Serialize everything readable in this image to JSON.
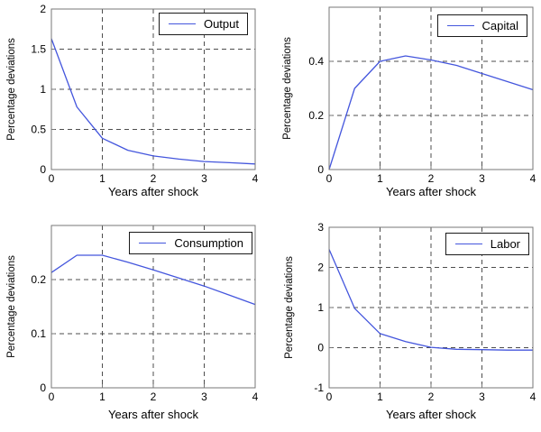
{
  "figure": {
    "background": "#ffffff",
    "line_color": "#4456dd",
    "grid_color": "#4d4d4d",
    "axis_color": "#777777",
    "tick_text_color": "#000000"
  },
  "chart_data": [
    {
      "type": "line",
      "series_label": "Output",
      "xlabel": "Years after shock",
      "ylabel": "Percentage deviations",
      "x": [
        0,
        0.5,
        1,
        1.5,
        2,
        2.5,
        3,
        3.5,
        4
      ],
      "y": [
        1.63,
        0.78,
        0.39,
        0.24,
        0.17,
        0.13,
        0.1,
        0.085,
        0.07
      ],
      "xlim": [
        0,
        4
      ],
      "ylim": [
        0,
        2
      ],
      "xticks": [
        0,
        1,
        2,
        3,
        4
      ],
      "xtick_labels": [
        "0",
        "1",
        "2",
        "3",
        "4"
      ],
      "yticks": [
        0,
        0.5,
        1,
        1.5,
        2
      ],
      "ytick_labels": [
        "0",
        "0.5",
        "1",
        "1.5",
        "2"
      ],
      "grid": true,
      "legend_position": "top-right"
    },
    {
      "type": "line",
      "series_label": "Capital",
      "xlabel": "Years after shock",
      "ylabel": "Percentage deviations",
      "x": [
        0,
        0.5,
        1,
        1.5,
        2,
        2.5,
        3,
        3.5,
        4
      ],
      "y": [
        0,
        0.3,
        0.4,
        0.42,
        0.405,
        0.385,
        0.355,
        0.325,
        0.295
      ],
      "xlim": [
        0,
        4
      ],
      "ylim": [
        0,
        0.6
      ],
      "xticks": [
        0,
        1,
        2,
        3,
        4
      ],
      "xtick_labels": [
        "0",
        "1",
        "2",
        "3",
        "4"
      ],
      "yticks": [
        0,
        0.2,
        0.4
      ],
      "ytick_labels": [
        "0",
        "0.2",
        "0.4"
      ],
      "grid": true,
      "legend_position": "top-right"
    },
    {
      "type": "line",
      "series_label": "Consumption",
      "xlabel": "Years after shock",
      "ylabel": "Percentage deviations",
      "x": [
        0,
        0.5,
        1,
        1.5,
        2,
        2.5,
        3,
        3.5,
        4
      ],
      "y": [
        0.213,
        0.245,
        0.245,
        0.232,
        0.218,
        0.203,
        0.188,
        0.171,
        0.154
      ],
      "xlim": [
        0,
        4
      ],
      "ylim": [
        0,
        0.3
      ],
      "xticks": [
        0,
        1,
        2,
        3,
        4
      ],
      "xtick_labels": [
        "0",
        "1",
        "2",
        "3",
        "4"
      ],
      "yticks": [
        0,
        0.1,
        0.2
      ],
      "ytick_labels": [
        "0",
        "0.1",
        "0.2"
      ],
      "grid": true,
      "legend_position": "top-right"
    },
    {
      "type": "line",
      "series_label": "Labor",
      "xlabel": "Years after shock",
      "ylabel": "Percentage deviations",
      "x": [
        0,
        0.5,
        1,
        1.5,
        2,
        2.5,
        3,
        3.5,
        4
      ],
      "y": [
        2.45,
        0.98,
        0.35,
        0.15,
        0.01,
        -0.04,
        -0.05,
        -0.06,
        -0.06
      ],
      "xlim": [
        0,
        4
      ],
      "ylim": [
        -1,
        3
      ],
      "xticks": [
        0,
        1,
        2,
        3,
        4
      ],
      "xtick_labels": [
        "0",
        "1",
        "2",
        "3",
        "4"
      ],
      "yticks": [
        -1,
        0,
        1,
        2,
        3
      ],
      "ytick_labels": [
        "-1",
        "0",
        "1",
        "2",
        "3"
      ],
      "grid": true,
      "legend_position": "top-right"
    }
  ]
}
